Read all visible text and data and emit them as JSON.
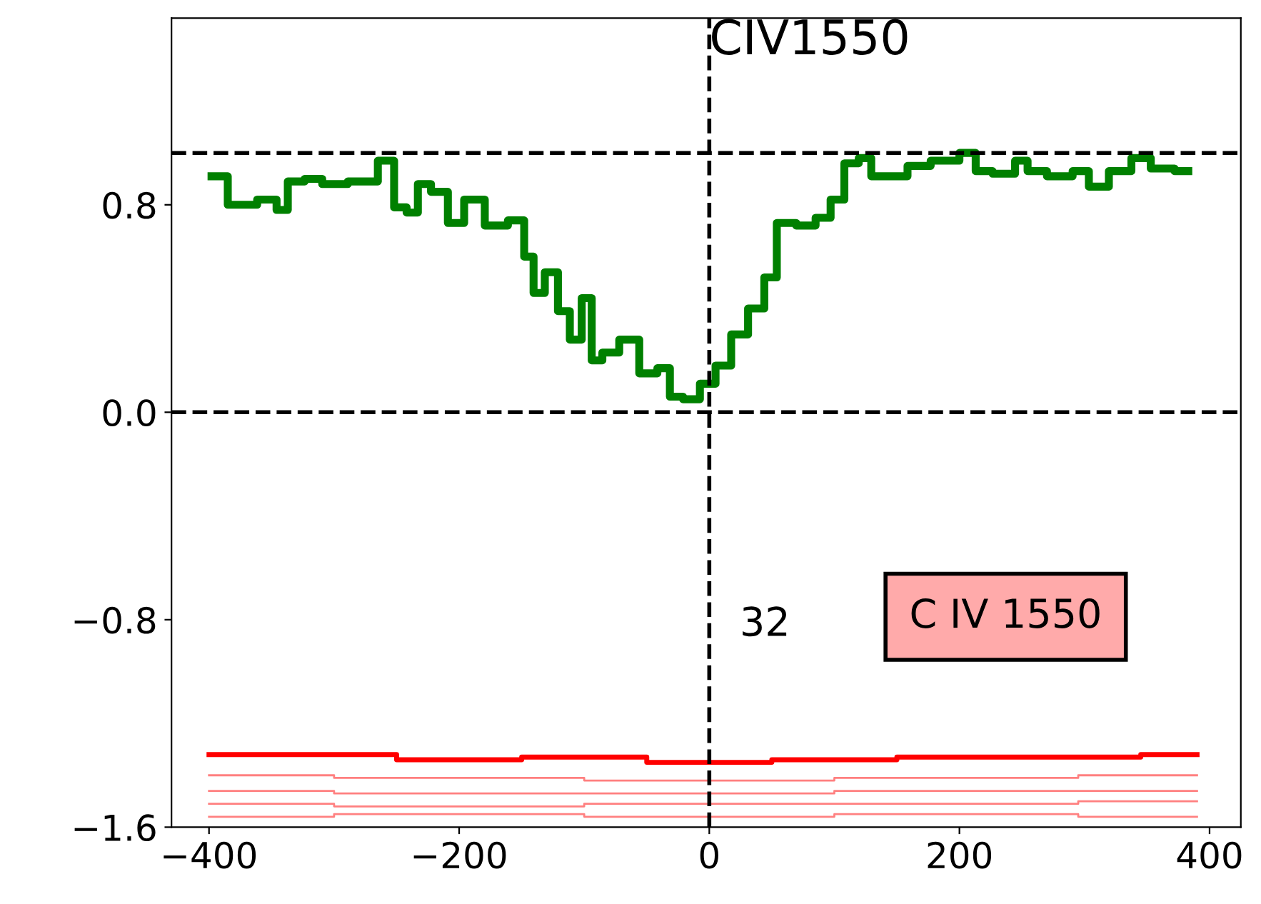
{
  "chart_data": {
    "type": "step",
    "xlim": [
      -430,
      425
    ],
    "ylim": [
      -1.6,
      1.52
    ],
    "xticks": [
      {
        "value": -400,
        "label": "−400"
      },
      {
        "value": -200,
        "label": "−200"
      },
      0,
      200,
      400
    ],
    "yticks": [
      {
        "value": -1.6,
        "label": "−1.6"
      },
      {
        "value": -0.8,
        "label": "−0.8"
      },
      {
        "value": 0,
        "label": "0.0"
      },
      0.8
    ],
    "grid": false,
    "line_style": "solid",
    "marker": "none",
    "series": [
      {
        "color": "#ff8080",
        "x": [
          -400,
          -200,
          0,
          200,
          390
        ],
        "values": [
          -1.4,
          -1.41,
          -1.42,
          -1.41,
          -1.4
        ]
      },
      {
        "color": "#ff8080",
        "x": [
          -400,
          -200,
          0,
          200,
          390
        ],
        "values": [
          -1.46,
          -1.47,
          -1.47,
          -1.46,
          -1.46
        ]
      },
      {
        "color": "#ff8080",
        "x": [
          -400,
          -200,
          0,
          200,
          390
        ],
        "values": [
          -1.51,
          -1.52,
          -1.51,
          -1.51,
          -1.5
        ]
      },
      {
        "color": "#ff8080",
        "x": [
          -400,
          -200,
          0,
          200,
          390
        ],
        "values": [
          -1.56,
          -1.55,
          -1.56,
          -1.55,
          -1.56
        ]
      },
      {
        "color": "#ff0000",
        "x": [
          -400,
          -300,
          -200,
          -100,
          0,
          100,
          200,
          300,
          390
        ],
        "values": [
          -1.32,
          -1.32,
          -1.34,
          -1.33,
          -1.35,
          -1.34,
          -1.33,
          -1.33,
          -1.32
        ]
      },
      {
        "color": "#008000",
        "x": [
          -398,
          -372,
          -351,
          -341,
          -333,
          -314,
          -305,
          -273,
          -257,
          -247,
          -237,
          -229,
          -216,
          -202,
          -190,
          -169,
          -153,
          -143,
          -138,
          -125,
          -117,
          -106,
          -98,
          -90,
          -81,
          -63,
          -49,
          -34,
          -29,
          -13,
          -2,
          12,
          23,
          39,
          49,
          59,
          80,
          90,
          104,
          112,
          127,
          132,
          153,
          164,
          190,
          210,
          216,
          237,
          252,
          257,
          283,
          298,
          309,
          330,
          345,
          361,
          383
        ],
        "values": [
          0.91,
          0.8,
          0.82,
          0.78,
          0.89,
          0.9,
          0.88,
          0.89,
          0.97,
          0.79,
          0.77,
          0.88,
          0.85,
          0.73,
          0.82,
          0.72,
          0.74,
          0.6,
          0.46,
          0.54,
          0.39,
          0.28,
          0.44,
          0.2,
          0.23,
          0.28,
          0.15,
          0.17,
          0.06,
          0.05,
          0.11,
          0.18,
          0.3,
          0.4,
          0.52,
          0.73,
          0.72,
          0.75,
          0.82,
          0.96,
          0.98,
          0.91,
          0.91,
          0.95,
          0.97,
          1.0,
          0.93,
          0.92,
          0.97,
          0.93,
          0.91,
          0.93,
          0.87,
          0.93,
          0.98,
          0.94,
          0.93
        ]
      }
    ],
    "ref_lines": [
      {
        "axis": "y",
        "value": 1,
        "color": "#000000",
        "line_style": "dashed"
      },
      {
        "axis": "y",
        "value": 0,
        "color": "#000000",
        "line_style": "dashed"
      },
      {
        "axis": "x",
        "value": 0,
        "label": "CIV1550",
        "color": "#000000",
        "line_style": "dashed"
      }
    ],
    "annotations": [
      "32",
      "C IV 1550"
    ]
  }
}
